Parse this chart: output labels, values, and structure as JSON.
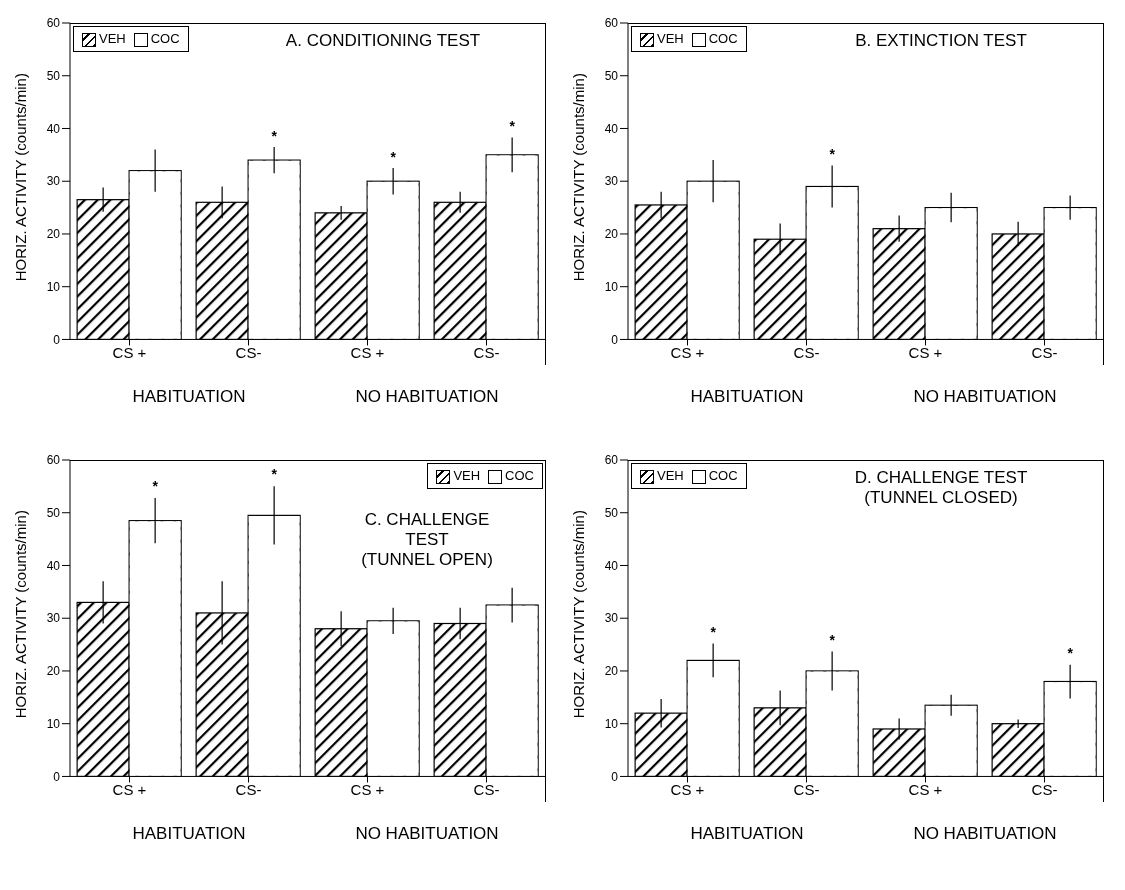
{
  "chart_data": [
    {
      "type": "bar",
      "title": "A. CONDITIONING TEST",
      "ylabel": "HORIZ. ACTIVITY (counts/min)",
      "categories": [
        "CS +",
        "CS-",
        "CS +",
        "CS-"
      ],
      "annotations": [
        "HABITUATION",
        "NO HABITUATION"
      ],
      "ylim": [
        0,
        60
      ],
      "yticks": [
        0,
        10,
        20,
        30,
        40,
        50,
        60
      ],
      "legend": "top left",
      "series": [
        {
          "name": "VEH",
          "color": "#000000",
          "values": [
            26.5,
            26,
            24,
            26
          ],
          "errors": [
            2.3,
            3,
            1.3,
            2
          ]
        },
        {
          "name": "COC",
          "color": "#ffffff",
          "values": [
            32,
            34,
            30,
            35
          ],
          "errors": [
            4,
            2.5,
            2.5,
            3.3
          ],
          "value_labels": [
            null,
            "*",
            "*",
            "*"
          ]
        }
      ]
    },
    {
      "type": "bar",
      "title": "B. EXTINCTION TEST",
      "ylabel": "HORIZ. ACTIVITY (counts/min)",
      "categories": [
        "CS +",
        "CS-",
        "CS +",
        "CS-"
      ],
      "annotations": [
        "HABITUATION",
        "NO HABITUATION"
      ],
      "ylim": [
        0,
        60
      ],
      "yticks": [
        0,
        10,
        20,
        30,
        40,
        50,
        60
      ],
      "legend": "top left",
      "series": [
        {
          "name": "VEH",
          "color": "#000000",
          "values": [
            25.5,
            19,
            21,
            20
          ],
          "errors": [
            2.5,
            3,
            2.5,
            2.3
          ]
        },
        {
          "name": "COC",
          "color": "#ffffff",
          "values": [
            30,
            29,
            25,
            25
          ],
          "errors": [
            4,
            4,
            2.8,
            2.3
          ],
          "value_labels": [
            null,
            "*",
            null,
            null
          ]
        }
      ]
    },
    {
      "type": "bar",
      "title": "C. CHALLENGE\nTEST\n(TUNNEL OPEN)",
      "ylabel": "HORIZ. ACTIVITY (counts/min)",
      "categories": [
        "CS +",
        "CS-",
        "CS +",
        "CS-"
      ],
      "annotations": [
        "HABITUATION",
        "NO HABITUATION"
      ],
      "ylim": [
        0,
        60
      ],
      "yticks": [
        0,
        10,
        20,
        30,
        40,
        50,
        60
      ],
      "legend": "top right",
      "series": [
        {
          "name": "VEH",
          "color": "#000000",
          "values": [
            33,
            31,
            28,
            29
          ],
          "errors": [
            4,
            6,
            3.3,
            3
          ]
        },
        {
          "name": "COC",
          "color": "#ffffff",
          "values": [
            48.5,
            49.5,
            29.5,
            32.5
          ],
          "errors": [
            4.3,
            5.5,
            2.5,
            3.3
          ],
          "value_labels": [
            "*",
            "*",
            null,
            null
          ]
        }
      ]
    },
    {
      "type": "bar",
      "title": "D. CHALLENGE TEST\n(TUNNEL CLOSED)",
      "ylabel": "HORIZ. ACTIVITY (counts/min)",
      "categories": [
        "CS +",
        "CS-",
        "CS +",
        "CS-"
      ],
      "annotations": [
        "HABITUATION",
        "NO HABITUATION"
      ],
      "ylim": [
        0,
        60
      ],
      "yticks": [
        0,
        10,
        20,
        30,
        40,
        50,
        60
      ],
      "legend": "top left",
      "series": [
        {
          "name": "VEH",
          "color": "#000000",
          "values": [
            12,
            13,
            9,
            10
          ],
          "errors": [
            2.7,
            3.3,
            2,
            0.8
          ]
        },
        {
          "name": "COC",
          "color": "#ffffff",
          "values": [
            22,
            20,
            13.5,
            18
          ],
          "errors": [
            3.2,
            3.7,
            2,
            3.2
          ],
          "value_labels": [
            "*",
            "*",
            null,
            "*"
          ]
        }
      ]
    }
  ]
}
